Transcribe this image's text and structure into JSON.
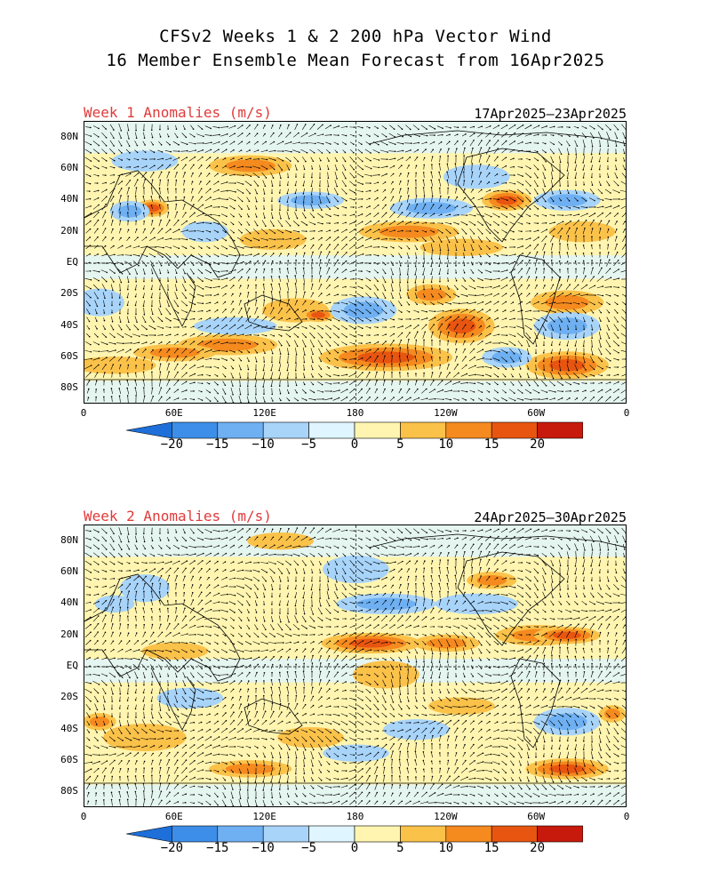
{
  "title_line1": "CFSv2 Weeks 1 & 2 200 hPa Vector Wind",
  "title_line2": "16 Member Ensemble Mean Forecast from 16Apr2025",
  "panels": [
    {
      "label": "Week 1 Anomalies (m/s)",
      "date_range": "17Apr2025—23Apr2025"
    },
    {
      "label": "Week 2 Anomalies (m/s)",
      "date_range": "24Apr2025—30Apr2025"
    }
  ],
  "lat_labels": [
    "80N",
    "60N",
    "40N",
    "20N",
    "EQ",
    "20S",
    "40S",
    "60S",
    "80S"
  ],
  "lon_labels": [
    "0",
    "60E",
    "120E",
    "180",
    "120W",
    "60W",
    "0"
  ],
  "colorbar": {
    "labels": [
      "−20",
      "−15",
      "−10",
      "−5",
      "0",
      "5",
      "10",
      "15",
      "20"
    ],
    "colors": [
      "#1e6fd9",
      "#3d8ee8",
      "#6eb0f2",
      "#a8d4fa",
      "#dff5ff",
      "#fff5b0",
      "#fbc24a",
      "#f58a1f",
      "#e85510",
      "#c81a0c",
      "#a00000"
    ]
  }
}
